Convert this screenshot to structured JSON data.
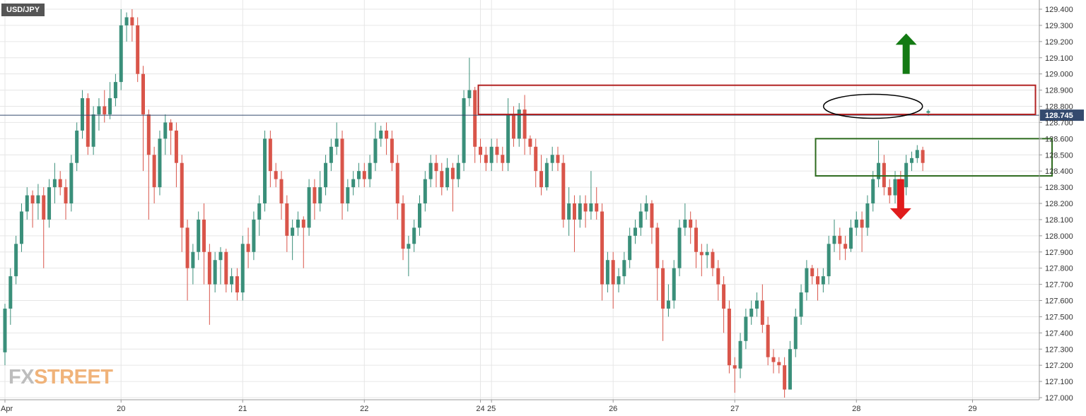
{
  "chart_data": {
    "type": "candlestick",
    "title": "USD/JPY",
    "y_axis": {
      "ylim": [
        127.0,
        129.45
      ],
      "ticks": [
        "127.000",
        "127.100",
        "127.200",
        "127.300",
        "127.400",
        "127.500",
        "127.600",
        "127.700",
        "127.800",
        "127.900",
        "128.000",
        "128.100",
        "128.200",
        "128.300",
        "128.400",
        "128.500",
        "128.600",
        "128.700",
        "128.800",
        "128.900",
        "129.000",
        "129.100",
        "129.200",
        "129.300",
        "129.400"
      ],
      "position": "right"
    },
    "x_axis": {
      "labels": [
        {
          "text": "Apr",
          "index": 0
        },
        {
          "text": "20",
          "index": 21
        },
        {
          "text": "21",
          "index": 43
        },
        {
          "text": "22",
          "index": 65
        },
        {
          "text": "24",
          "index": 86
        },
        {
          "text": "25",
          "index": 88
        },
        {
          "text": "26",
          "index": 110
        },
        {
          "text": "27",
          "index": 132
        },
        {
          "text": "28",
          "index": 154
        },
        {
          "text": "29",
          "index": 175
        }
      ],
      "slot_count": 188
    },
    "grid": true,
    "current_price": {
      "value": 128.745,
      "label": "128.745"
    },
    "candles": [
      [
        127.28,
        127.55,
        127.2,
        127.58
      ],
      [
        127.55,
        127.75,
        127.45,
        127.8
      ],
      [
        127.75,
        127.95,
        127.7,
        128.0
      ],
      [
        127.95,
        128.15,
        127.9,
        128.2
      ],
      [
        128.15,
        128.25,
        128.1,
        128.3
      ],
      [
        128.25,
        128.2,
        128.05,
        128.28
      ],
      [
        128.2,
        128.25,
        128.1,
        128.32
      ],
      [
        128.25,
        128.1,
        127.8,
        128.3
      ],
      [
        128.1,
        128.3,
        128.05,
        128.35
      ],
      [
        128.3,
        128.35,
        128.2,
        128.45
      ],
      [
        128.35,
        128.3,
        128.25,
        128.4
      ],
      [
        128.3,
        128.2,
        128.1,
        128.35
      ],
      [
        128.2,
        128.45,
        128.15,
        128.5
      ],
      [
        128.45,
        128.65,
        128.4,
        128.7
      ],
      [
        128.65,
        128.85,
        128.6,
        128.9
      ],
      [
        128.85,
        128.55,
        128.5,
        128.88
      ],
      [
        128.55,
        128.75,
        128.5,
        128.8
      ],
      [
        128.75,
        128.8,
        128.65,
        128.85
      ],
      [
        128.8,
        128.75,
        128.7,
        128.9
      ],
      [
        128.75,
        128.85,
        128.72,
        128.95
      ],
      [
        128.85,
        128.95,
        128.8,
        129.0
      ],
      [
        128.95,
        129.3,
        128.9,
        129.4
      ],
      [
        129.3,
        129.35,
        129.2,
        129.38
      ],
      [
        129.35,
        129.3,
        129.2,
        129.4
      ],
      [
        129.3,
        129.0,
        128.95,
        129.35
      ],
      [
        129.0,
        128.75,
        128.4,
        129.05
      ],
      [
        128.75,
        128.5,
        128.1,
        128.78
      ],
      [
        128.5,
        128.3,
        128.2,
        128.55
      ],
      [
        128.3,
        128.6,
        128.25,
        128.65
      ],
      [
        128.6,
        128.7,
        128.5,
        128.75
      ],
      [
        128.7,
        128.65,
        128.5,
        128.72
      ],
      [
        128.65,
        128.45,
        128.3,
        128.7
      ],
      [
        128.45,
        128.05,
        127.9,
        128.5
      ],
      [
        128.05,
        127.8,
        127.6,
        128.1
      ],
      [
        127.8,
        127.9,
        127.7,
        127.95
      ],
      [
        127.9,
        128.1,
        127.85,
        128.15
      ],
      [
        128.1,
        127.9,
        127.7,
        128.2
      ],
      [
        127.9,
        127.7,
        127.45,
        127.95
      ],
      [
        127.7,
        127.85,
        127.65,
        127.9
      ],
      [
        127.85,
        127.9,
        127.7,
        127.93
      ],
      [
        127.9,
        127.7,
        127.65,
        127.92
      ],
      [
        127.7,
        127.75,
        127.65,
        127.8
      ],
      [
        127.75,
        127.65,
        127.6,
        127.8
      ],
      [
        127.65,
        127.95,
        127.6,
        128.0
      ],
      [
        127.95,
        127.9,
        127.8,
        128.05
      ],
      [
        127.9,
        128.1,
        127.85,
        128.15
      ],
      [
        128.1,
        128.2,
        128.0,
        128.25
      ],
      [
        128.2,
        128.6,
        128.15,
        128.65
      ],
      [
        128.6,
        128.4,
        128.3,
        128.65
      ],
      [
        128.4,
        128.35,
        128.3,
        128.45
      ],
      [
        128.35,
        128.2,
        128.1,
        128.4
      ],
      [
        128.2,
        128.0,
        127.9,
        128.25
      ],
      [
        128.0,
        128.05,
        127.85,
        128.1
      ],
      [
        128.05,
        128.1,
        128.0,
        128.15
      ],
      [
        128.1,
        128.05,
        127.8,
        128.12
      ],
      [
        128.05,
        128.3,
        128.0,
        128.35
      ],
      [
        128.3,
        128.2,
        128.1,
        128.35
      ],
      [
        128.2,
        128.3,
        128.15,
        128.4
      ],
      [
        128.3,
        128.45,
        128.25,
        128.5
      ],
      [
        128.45,
        128.55,
        128.4,
        128.6
      ],
      [
        128.55,
        128.6,
        128.5,
        128.7
      ],
      [
        128.6,
        128.2,
        128.1,
        128.65
      ],
      [
        128.2,
        128.3,
        128.15,
        128.35
      ],
      [
        128.3,
        128.35,
        128.25,
        128.4
      ],
      [
        128.35,
        128.4,
        128.3,
        128.45
      ],
      [
        128.4,
        128.35,
        128.3,
        128.45
      ],
      [
        128.35,
        128.45,
        128.3,
        128.5
      ],
      [
        128.45,
        128.6,
        128.4,
        128.7
      ],
      [
        128.6,
        128.65,
        128.55,
        128.68
      ],
      [
        128.65,
        128.6,
        128.5,
        128.7
      ],
      [
        128.6,
        128.45,
        128.4,
        128.65
      ],
      [
        128.45,
        128.2,
        128.1,
        128.5
      ],
      [
        128.2,
        127.92,
        127.85,
        128.25
      ],
      [
        127.92,
        127.95,
        127.75,
        128.0
      ],
      [
        127.95,
        128.05,
        127.9,
        128.1
      ],
      [
        128.05,
        128.2,
        128.0,
        128.25
      ],
      [
        128.2,
        128.35,
        128.15,
        128.4
      ],
      [
        128.35,
        128.45,
        128.3,
        128.5
      ],
      [
        128.45,
        128.4,
        128.3,
        128.5
      ],
      [
        128.4,
        128.3,
        128.25,
        128.45
      ],
      [
        128.3,
        128.42,
        128.28,
        128.48
      ],
      [
        128.42,
        128.35,
        128.15,
        128.45
      ],
      [
        128.35,
        128.45,
        128.3,
        128.5
      ],
      [
        128.45,
        128.85,
        128.4,
        128.9
      ],
      [
        128.85,
        128.9,
        128.8,
        129.1
      ],
      [
        128.9,
        128.55,
        128.45,
        128.92
      ],
      [
        128.55,
        128.5,
        128.45,
        128.6
      ],
      [
        128.5,
        128.45,
        128.4,
        128.55
      ],
      [
        128.45,
        128.55,
        128.4,
        128.6
      ],
      [
        128.55,
        128.5,
        128.45,
        128.6
      ],
      [
        128.5,
        128.45,
        128.4,
        128.55
      ],
      [
        128.45,
        128.75,
        128.4,
        128.85
      ],
      [
        128.75,
        128.6,
        128.55,
        128.8
      ],
      [
        128.6,
        128.78,
        128.55,
        128.82
      ],
      [
        128.78,
        128.6,
        128.5,
        128.87
      ],
      [
        128.6,
        128.55,
        128.5,
        128.62
      ],
      [
        128.55,
        128.4,
        128.3,
        128.6
      ],
      [
        128.4,
        128.3,
        128.25,
        128.5
      ],
      [
        128.3,
        128.45,
        128.28,
        128.48
      ],
      [
        128.45,
        128.5,
        128.4,
        128.55
      ],
      [
        128.5,
        128.45,
        128.4,
        128.55
      ],
      [
        128.45,
        128.1,
        128.05,
        128.5
      ],
      [
        128.1,
        128.2,
        128.0,
        128.3
      ],
      [
        128.2,
        128.1,
        127.9,
        128.25
      ],
      [
        128.1,
        128.2,
        128.05,
        128.25
      ],
      [
        128.2,
        128.15,
        128.05,
        128.25
      ],
      [
        128.15,
        128.2,
        128.1,
        128.4
      ],
      [
        128.2,
        128.15,
        128.1,
        128.3
      ],
      [
        128.15,
        127.7,
        127.6,
        128.2
      ],
      [
        127.7,
        127.85,
        127.65,
        127.9
      ],
      [
        127.85,
        127.7,
        127.55,
        127.9
      ],
      [
        127.7,
        127.75,
        127.65,
        127.8
      ],
      [
        127.75,
        127.85,
        127.7,
        127.9
      ],
      [
        127.85,
        128.0,
        127.8,
        128.05
      ],
      [
        128.0,
        128.05,
        127.95,
        128.1
      ],
      [
        128.05,
        128.15,
        128.0,
        128.2
      ],
      [
        128.15,
        128.2,
        128.1,
        128.25
      ],
      [
        128.2,
        128.05,
        127.95,
        128.22
      ],
      [
        128.05,
        127.8,
        127.6,
        128.08
      ],
      [
        127.8,
        127.55,
        127.35,
        127.85
      ],
      [
        127.55,
        127.6,
        127.5,
        127.7
      ],
      [
        127.6,
        127.8,
        127.55,
        127.85
      ],
      [
        127.8,
        128.05,
        127.75,
        128.1
      ],
      [
        128.05,
        128.1,
        128.0,
        128.2
      ],
      [
        128.1,
        128.05,
        127.95,
        128.15
      ],
      [
        128.05,
        127.9,
        127.8,
        128.1
      ],
      [
        127.9,
        127.88,
        127.75,
        127.95
      ],
      [
        127.88,
        127.9,
        127.8,
        127.95
      ],
      [
        127.9,
        127.8,
        127.75,
        127.92
      ],
      [
        127.8,
        127.7,
        127.6,
        127.85
      ],
      [
        127.7,
        127.55,
        127.4,
        127.75
      ],
      [
        127.55,
        127.2,
        127.15,
        127.6
      ],
      [
        127.2,
        127.18,
        127.03,
        127.25
      ],
      [
        127.18,
        127.35,
        127.12,
        127.4
      ],
      [
        127.35,
        127.5,
        127.3,
        127.55
      ],
      [
        127.5,
        127.55,
        127.45,
        127.6
      ],
      [
        127.55,
        127.6,
        127.5,
        127.65
      ],
      [
        127.6,
        127.45,
        127.4,
        127.7
      ],
      [
        127.45,
        127.25,
        127.2,
        127.5
      ],
      [
        127.25,
        127.22,
        127.15,
        127.3
      ],
      [
        127.22,
        127.2,
        127.15,
        127.25
      ],
      [
        127.2,
        127.05,
        127.0,
        127.25
      ],
      [
        127.05,
        127.3,
        127.05,
        127.35
      ],
      [
        127.3,
        127.5,
        127.25,
        127.55
      ],
      [
        127.5,
        127.65,
        127.45,
        127.7
      ],
      [
        127.65,
        127.8,
        127.6,
        127.85
      ],
      [
        127.8,
        127.75,
        127.7,
        127.82
      ],
      [
        127.75,
        127.7,
        127.6,
        127.8
      ],
      [
        127.7,
        127.75,
        127.65,
        127.8
      ],
      [
        127.75,
        127.95,
        127.7,
        128.0
      ],
      [
        127.95,
        128.0,
        127.9,
        128.1
      ],
      [
        128.0,
        127.95,
        127.85,
        128.05
      ],
      [
        127.95,
        127.92,
        127.85,
        128.0
      ],
      [
        127.92,
        128.05,
        127.9,
        128.1
      ],
      [
        128.05,
        128.1,
        128.0,
        128.15
      ],
      [
        128.1,
        128.05,
        127.9,
        128.15
      ],
      [
        128.05,
        128.2,
        128.0,
        128.25
      ],
      [
        128.2,
        128.35,
        128.15,
        128.4
      ],
      [
        128.35,
        128.45,
        128.3,
        128.59
      ],
      [
        128.45,
        128.3,
        128.25,
        128.5
      ],
      [
        128.3,
        128.25,
        128.2,
        128.35
      ],
      [
        128.25,
        128.35,
        128.2,
        128.4
      ],
      [
        128.35,
        128.3,
        128.2,
        128.4
      ],
      [
        128.3,
        128.45,
        128.25,
        128.5
      ],
      [
        128.45,
        128.48,
        128.4,
        128.52
      ],
      [
        128.48,
        128.53,
        128.45,
        128.56
      ],
      [
        128.53,
        128.45,
        128.4,
        128.55
      ],
      [
        128.76,
        128.77,
        128.74,
        128.78
      ]
    ],
    "colors": {
      "up": "#3a8f7a",
      "down": "#d9554a",
      "current_price": "#344a6e",
      "resistance": "#b22222",
      "support": "#2e6b1f",
      "arrow_up": "#137a13",
      "arrow_down": "#e01c1c"
    },
    "annotations": [
      {
        "type": "rectangle",
        "role": "resistance-zone",
        "from": 86,
        "to": 186,
        "y_top": 128.93,
        "y_bottom": 128.75,
        "color": "#b22222"
      },
      {
        "type": "rectangle",
        "role": "support-zone",
        "from": 147,
        "to": 189,
        "y_top": 128.6,
        "y_bottom": 128.37,
        "color": "#2e6b1f"
      },
      {
        "type": "ellipse",
        "role": "highlight-latest",
        "center_index": 157,
        "center_y": 128.8,
        "color": "#000000"
      },
      {
        "type": "arrow",
        "direction": "up",
        "index": 163,
        "y_from": 129.0,
        "y_to": 129.25,
        "color": "#137a13"
      },
      {
        "type": "arrow",
        "direction": "down",
        "index": 162,
        "y_from": 128.35,
        "y_to": 128.1,
        "color": "#e01c1c"
      }
    ]
  },
  "watermark": {
    "fx": "FX",
    "street": "STREET"
  }
}
